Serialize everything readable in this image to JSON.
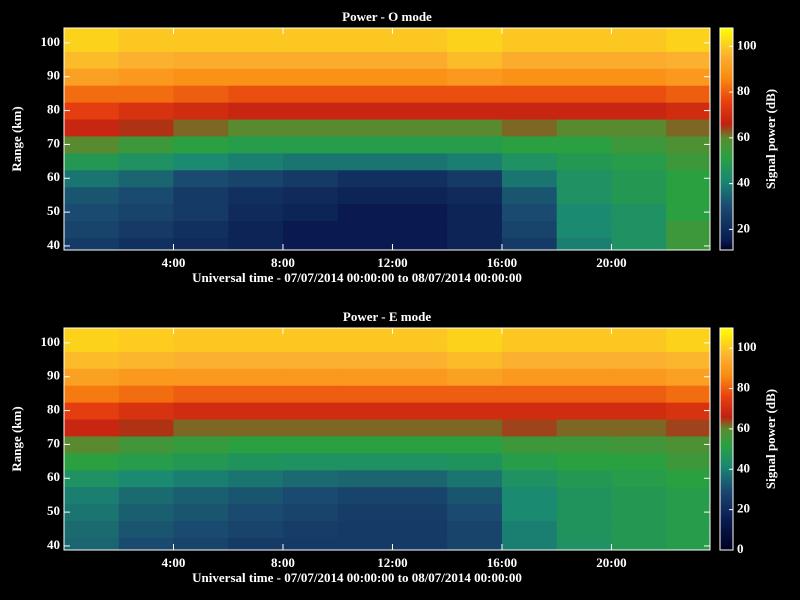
{
  "chart_data": [
    {
      "type": "heatmap",
      "title": "Power - O mode",
      "xlabel": "Universal time - 07/07/2014 00:00:00 to 08/07/2014 00:00:00",
      "ylabel": "Range (km)",
      "x": [
        1,
        3,
        5,
        7,
        9,
        11,
        13,
        15,
        17,
        19,
        21,
        23
      ],
      "y": [
        40,
        45,
        50,
        55,
        60,
        65,
        70,
        75,
        80,
        85,
        90,
        95,
        100,
        105
      ],
      "values": [
        [
          25,
          22,
          20,
          18,
          15,
          15,
          15,
          18,
          25,
          40,
          45,
          55
        ],
        [
          28,
          25,
          22,
          18,
          15,
          15,
          15,
          18,
          28,
          42,
          45,
          55
        ],
        [
          30,
          28,
          25,
          20,
          18,
          15,
          15,
          18,
          30,
          42,
          45,
          52
        ],
        [
          32,
          30,
          25,
          22,
          20,
          18,
          18,
          20,
          32,
          45,
          48,
          52
        ],
        [
          38,
          35,
          30,
          28,
          25,
          22,
          22,
          25,
          38,
          45,
          48,
          52
        ],
        [
          48,
          45,
          42,
          40,
          38,
          38,
          38,
          40,
          45,
          48,
          50,
          55
        ],
        [
          60,
          55,
          52,
          50,
          50,
          50,
          50,
          50,
          52,
          52,
          55,
          58
        ],
        [
          68,
          65,
          62,
          60,
          60,
          60,
          60,
          60,
          62,
          60,
          60,
          62
        ],
        [
          75,
          72,
          70,
          68,
          68,
          68,
          68,
          68,
          68,
          68,
          68,
          70
        ],
        [
          82,
          82,
          80,
          78,
          78,
          78,
          78,
          78,
          78,
          78,
          78,
          80
        ],
        [
          92,
          90,
          88,
          88,
          88,
          88,
          88,
          90,
          88,
          88,
          88,
          90
        ],
        [
          98,
          96,
          95,
          95,
          95,
          95,
          95,
          98,
          95,
          95,
          95,
          96
        ],
        [
          102,
          100,
          100,
          100,
          100,
          100,
          100,
          102,
          100,
          100,
          100,
          102
        ],
        [
          102,
          100,
          100,
          100,
          100,
          100,
          100,
          102,
          100,
          100,
          100,
          102
        ]
      ],
      "xlim": [
        0,
        23.6
      ],
      "xticks": [
        {
          "value": 4,
          "label": "4:00"
        },
        {
          "value": 8,
          "label": "8:00"
        },
        {
          "value": 12,
          "label": "12:00"
        },
        {
          "value": 16,
          "label": "16:00"
        },
        {
          "value": 20,
          "label": "20:00"
        }
      ],
      "ylim": [
        38.8,
        104.4
      ],
      "yticks": [
        40,
        50,
        60,
        70,
        80,
        90,
        100
      ],
      "colorbar": {
        "label": "Signal power (dB)",
        "lim": [
          11,
          108
        ],
        "ticks": [
          20,
          40,
          60,
          80,
          100
        ]
      },
      "colorscale": [
        {
          "value": 0,
          "color": "#000020"
        },
        {
          "value": 15,
          "color": "#0a1a50"
        },
        {
          "value": 30,
          "color": "#1a4a70"
        },
        {
          "value": 42,
          "color": "#1a8a70"
        },
        {
          "value": 52,
          "color": "#2aa040"
        },
        {
          "value": 60,
          "color": "#5a8a30"
        },
        {
          "value": 66,
          "color": "#c02010"
        },
        {
          "value": 76,
          "color": "#e84010"
        },
        {
          "value": 86,
          "color": "#f88a10"
        },
        {
          "value": 96,
          "color": "#fcb030"
        },
        {
          "value": 110,
          "color": "#ffff00"
        }
      ]
    },
    {
      "type": "heatmap",
      "title": "Power - E mode",
      "xlabel": "Universal time - 07/07/2014 00:00:00 to 08/07/2014 00:00:00",
      "ylabel": "Range (km)",
      "x": [
        1,
        3,
        5,
        7,
        9,
        11,
        13,
        15,
        17,
        19,
        21,
        23
      ],
      "y": [
        40,
        45,
        50,
        55,
        60,
        65,
        70,
        75,
        80,
        85,
        90,
        95,
        100,
        105
      ],
      "values": [
        [
          35,
          30,
          28,
          25,
          25,
          25,
          25,
          28,
          40,
          45,
          48,
          50
        ],
        [
          36,
          32,
          30,
          28,
          26,
          25,
          25,
          28,
          40,
          46,
          48,
          50
        ],
        [
          38,
          34,
          32,
          30,
          28,
          26,
          26,
          30,
          42,
          46,
          48,
          50
        ],
        [
          40,
          36,
          34,
          32,
          30,
          28,
          28,
          32,
          42,
          46,
          48,
          50
        ],
        [
          45,
          42,
          40,
          38,
          36,
          35,
          35,
          38,
          45,
          48,
          50,
          52
        ],
        [
          52,
          50,
          48,
          46,
          45,
          45,
          45,
          46,
          50,
          52,
          52,
          55
        ],
        [
          60,
          56,
          54,
          52,
          52,
          52,
          52,
          52,
          55,
          55,
          56,
          58
        ],
        [
          68,
          65,
          62,
          62,
          62,
          62,
          62,
          62,
          64,
          62,
          62,
          64
        ],
        [
          75,
          72,
          70,
          70,
          70,
          70,
          70,
          70,
          70,
          70,
          70,
          72
        ],
        [
          84,
          82,
          80,
          80,
          80,
          80,
          80,
          80,
          80,
          80,
          80,
          82
        ],
        [
          92,
          90,
          90,
          90,
          90,
          90,
          90,
          92,
          90,
          90,
          90,
          92
        ],
        [
          98,
          97,
          96,
          96,
          96,
          96,
          96,
          98,
          96,
          96,
          96,
          97
        ],
        [
          102,
          101,
          100,
          100,
          100,
          100,
          100,
          102,
          100,
          100,
          100,
          102
        ],
        [
          102,
          101,
          100,
          100,
          100,
          100,
          100,
          102,
          100,
          100,
          100,
          102
        ]
      ],
      "xlim": [
        0,
        23.6
      ],
      "xticks": [
        {
          "value": 4,
          "label": "4:00"
        },
        {
          "value": 8,
          "label": "8:00"
        },
        {
          "value": 12,
          "label": "12:00"
        },
        {
          "value": 16,
          "label": "16:00"
        },
        {
          "value": 20,
          "label": "20:00"
        }
      ],
      "ylim": [
        38.8,
        104.4
      ],
      "yticks": [
        40,
        50,
        60,
        70,
        80,
        90,
        100
      ],
      "colorbar": {
        "label": "Signal power (dB)",
        "lim": [
          0,
          110
        ],
        "ticks": [
          0,
          20,
          40,
          60,
          80,
          100
        ]
      },
      "colorscale": [
        {
          "value": 0,
          "color": "#000020"
        },
        {
          "value": 15,
          "color": "#0a1a50"
        },
        {
          "value": 30,
          "color": "#1a4a70"
        },
        {
          "value": 42,
          "color": "#1a8a70"
        },
        {
          "value": 52,
          "color": "#2aa040"
        },
        {
          "value": 60,
          "color": "#5a8a30"
        },
        {
          "value": 66,
          "color": "#c02010"
        },
        {
          "value": 76,
          "color": "#e84010"
        },
        {
          "value": 86,
          "color": "#f88a10"
        },
        {
          "value": 96,
          "color": "#fcb030"
        },
        {
          "value": 110,
          "color": "#ffff00"
        }
      ]
    }
  ]
}
